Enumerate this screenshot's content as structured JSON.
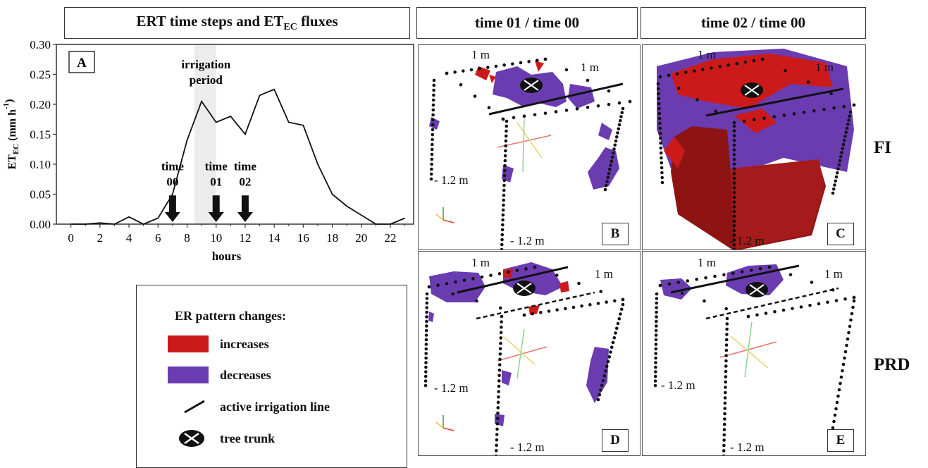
{
  "headers": {
    "a": {
      "main": "ERT time steps and ET",
      "sub": "EC",
      "tail": " fluxes"
    },
    "b": "time 01 / time 00",
    "c": "time 02 / time 00"
  },
  "rows": {
    "fi": "FI",
    "prd": "PRD"
  },
  "chart_data": {
    "type": "line",
    "panel_label": "A",
    "x": [
      0,
      1,
      2,
      3,
      4,
      5,
      6,
      7,
      8,
      9,
      10,
      11,
      12,
      13,
      14,
      15,
      16,
      17,
      18,
      19,
      20,
      21,
      22,
      23
    ],
    "y": [
      0.0,
      0.0,
      0.002,
      0.0,
      0.012,
      0.0,
      0.01,
      0.05,
      0.14,
      0.205,
      0.17,
      0.18,
      0.15,
      0.215,
      0.225,
      0.17,
      0.165,
      0.1,
      0.05,
      0.03,
      0.015,
      0.0,
      0.0,
      0.01
    ],
    "xlabel": "hours",
    "ylabel": {
      "main": "ET",
      "sub": "EC",
      "tail": " (mm h",
      "sup": "-1",
      "end": ")"
    },
    "xticks": [
      0,
      2,
      4,
      6,
      8,
      10,
      12,
      14,
      16,
      18,
      20,
      22
    ],
    "yticks": [
      "0.00",
      "0.05",
      "0.10",
      "0.15",
      "0.20",
      "0.25",
      "0.30"
    ],
    "xlim": [
      -1,
      23.6
    ],
    "ylim": [
      0,
      0.3
    ],
    "shaded_range": [
      8.5,
      10
    ],
    "annotation": {
      "line1": "irrigation",
      "line2": "period"
    },
    "arrows": [
      {
        "x": 7,
        "l1": "time",
        "l2": "00"
      },
      {
        "x": 10,
        "l1": "time",
        "l2": "01"
      },
      {
        "x": 12,
        "l1": "time",
        "l2": "02"
      }
    ]
  },
  "panels": {
    "B": {
      "label": "B",
      "top": "1 m",
      "right": "1 m",
      "left": "- 1.2 m",
      "bottom": "- 1.2 m"
    },
    "C": {
      "label": "C",
      "top": "1 m",
      "right": "1 m",
      "bottom": "- 1.2 m"
    },
    "D": {
      "label": "D",
      "top": "1 m",
      "right": "1 m",
      "left": "- 1.2 m",
      "bottom": "- 1.2 m"
    },
    "E": {
      "label": "E",
      "top": "1 m",
      "right": "1 m",
      "left": "- 1.2 m",
      "bottom": "- 1.2 m"
    }
  },
  "legend": {
    "title": "ER pattern changes:",
    "increases": "increases",
    "decreases": "decreases",
    "line": "active irrigation line",
    "trunk": "tree trunk",
    "colors": {
      "increase": "#cc1a1a",
      "decrease": "#6a3cb0"
    }
  }
}
